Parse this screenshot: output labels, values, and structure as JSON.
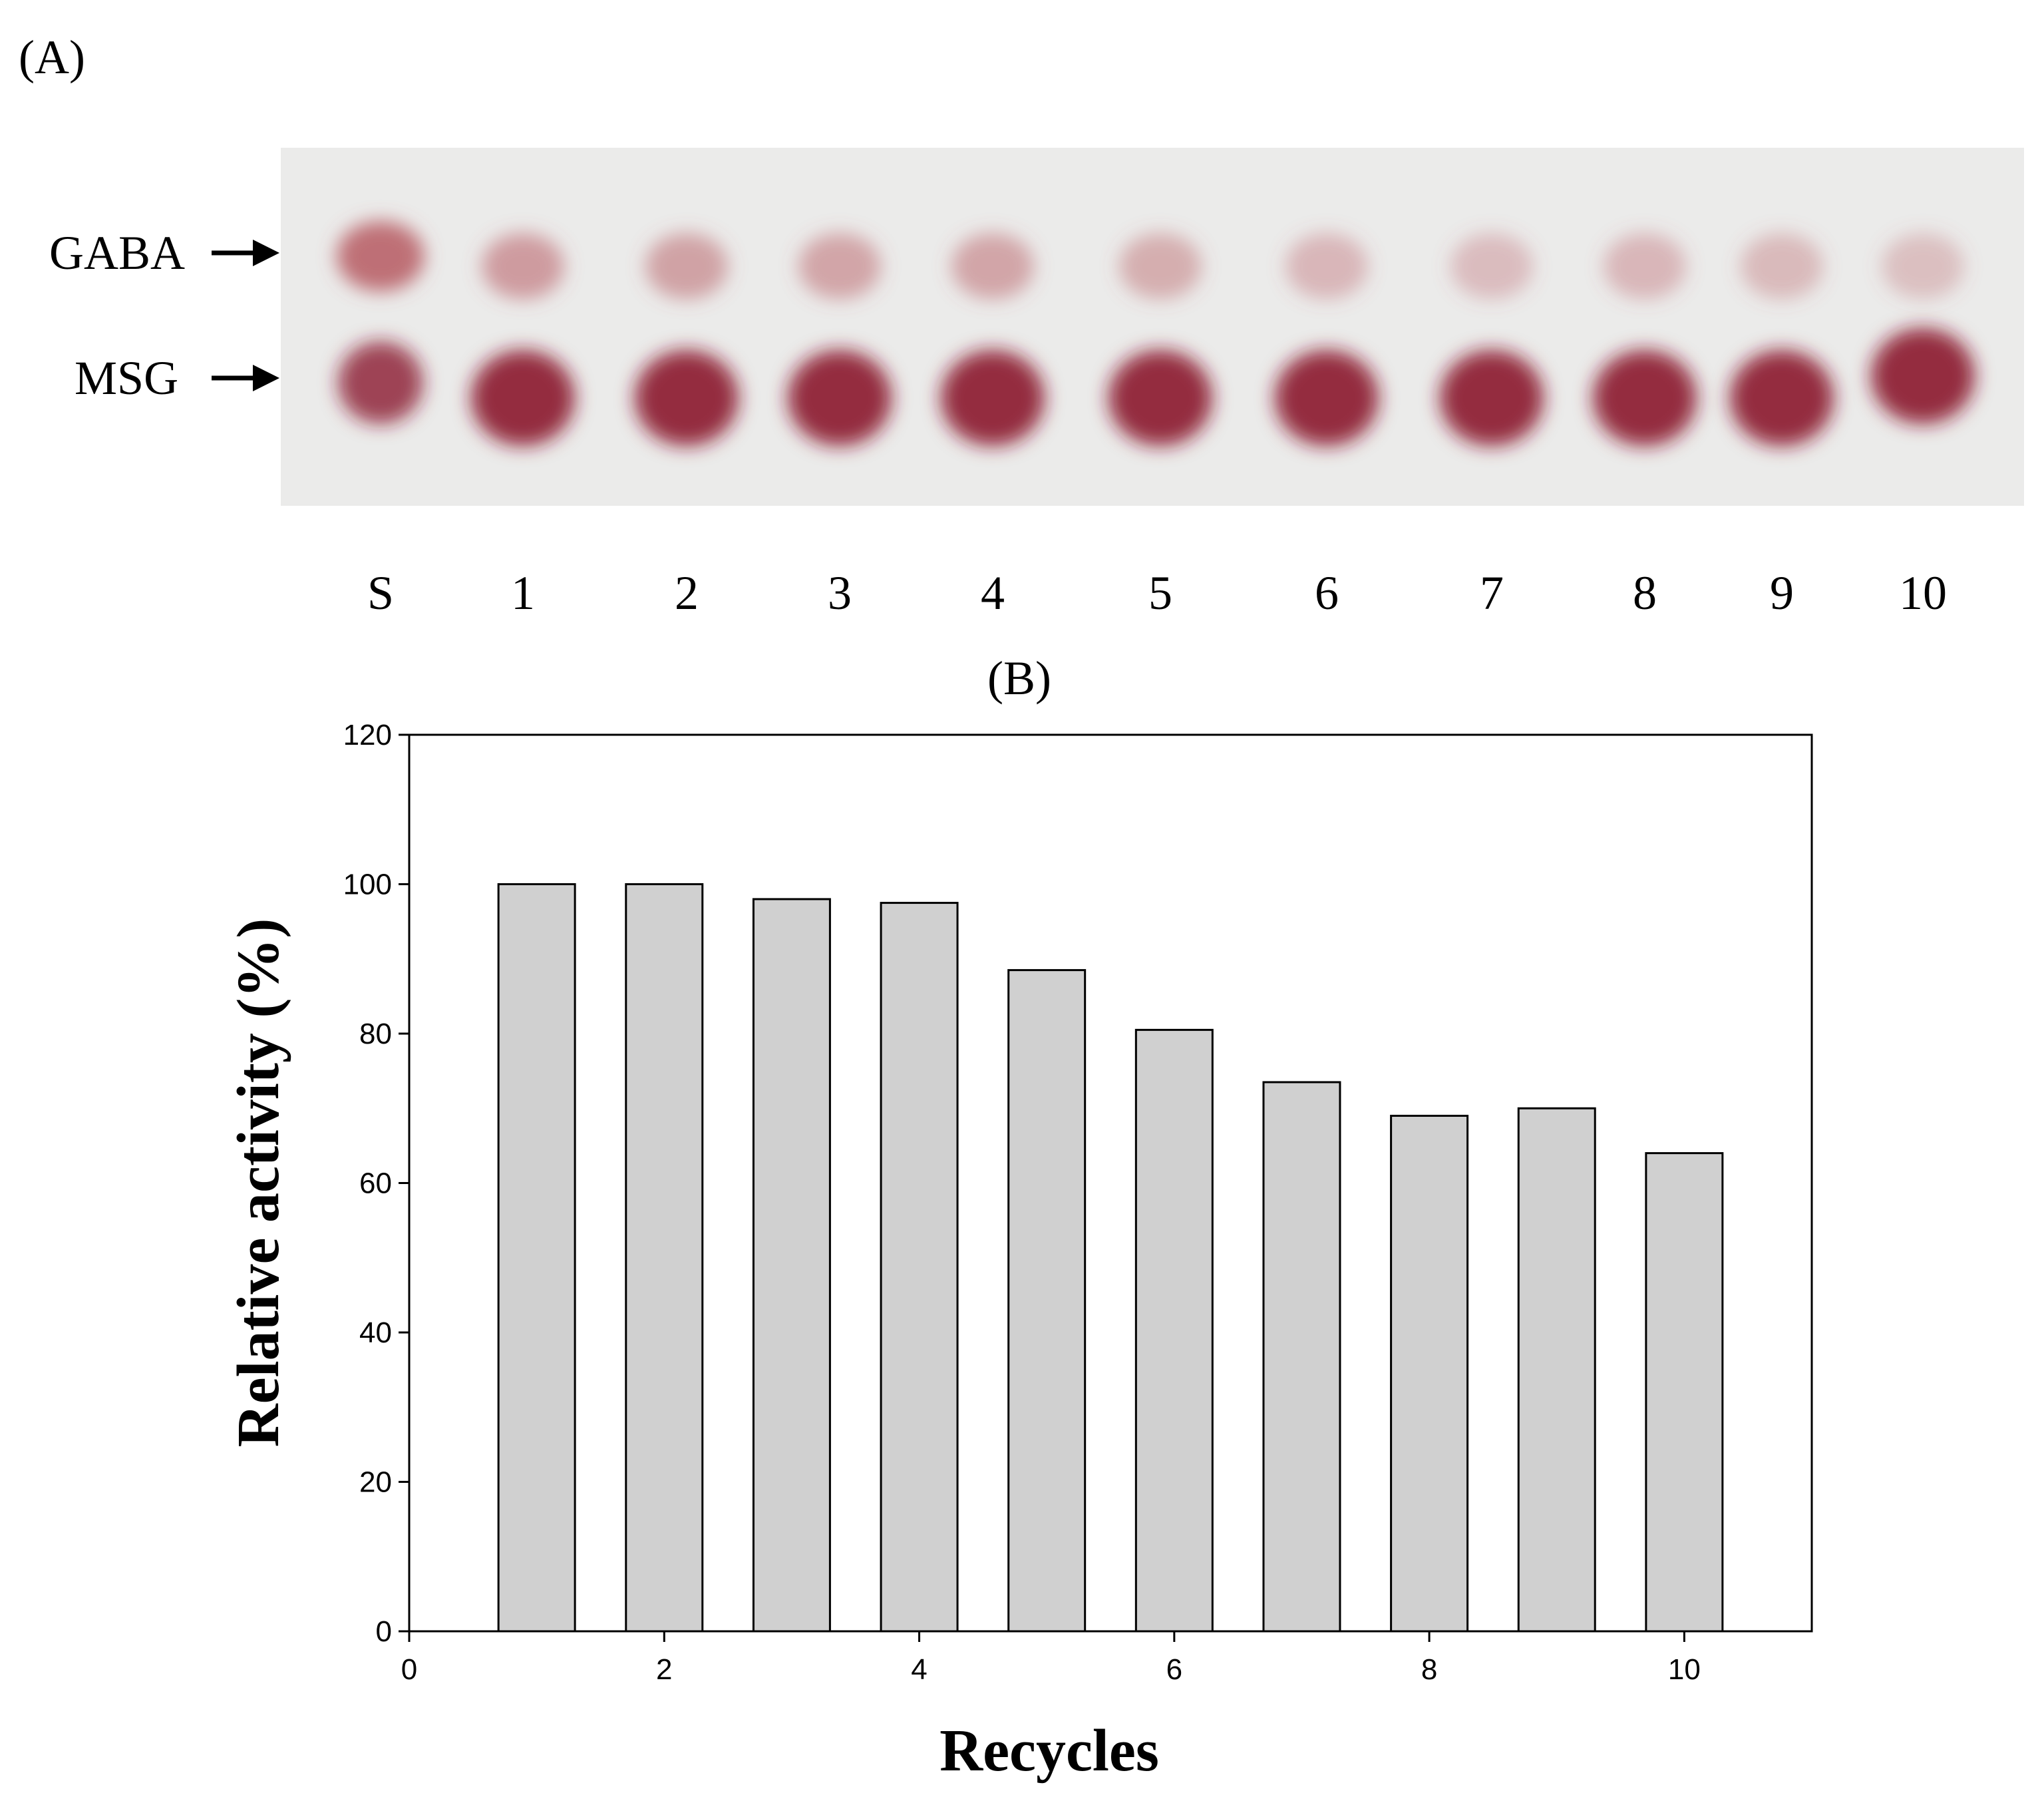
{
  "panel_a": {
    "label": "(A)",
    "lane_labels": [
      "S",
      "1",
      "2",
      "3",
      "4",
      "5",
      "6",
      "7",
      "8",
      "9",
      "10"
    ],
    "row_labels": {
      "gaba": "GABA",
      "msg": "MSG"
    },
    "spot_colors": {
      "plate": "#ebebea",
      "gaba": "#b65a60",
      "msg": "#8b1a2e"
    }
  },
  "panel_b": {
    "label": "(B)"
  },
  "chart_data": {
    "type": "bar",
    "x": [
      1,
      2,
      3,
      4,
      5,
      6,
      7,
      8,
      9,
      10
    ],
    "values": [
      100,
      100,
      98,
      97.5,
      88.5,
      80.5,
      73.5,
      69,
      70,
      64
    ],
    "xlabel": "Recycles",
    "ylabel": "Relative activity (%)",
    "xlim": [
      0,
      11
    ],
    "ylim": [
      0,
      120
    ],
    "xticks": [
      0,
      2,
      4,
      6,
      8,
      10
    ],
    "yticks": [
      0,
      20,
      40,
      60,
      80,
      100,
      120
    ],
    "grid": false,
    "bar_color": "#d0d0d0"
  }
}
